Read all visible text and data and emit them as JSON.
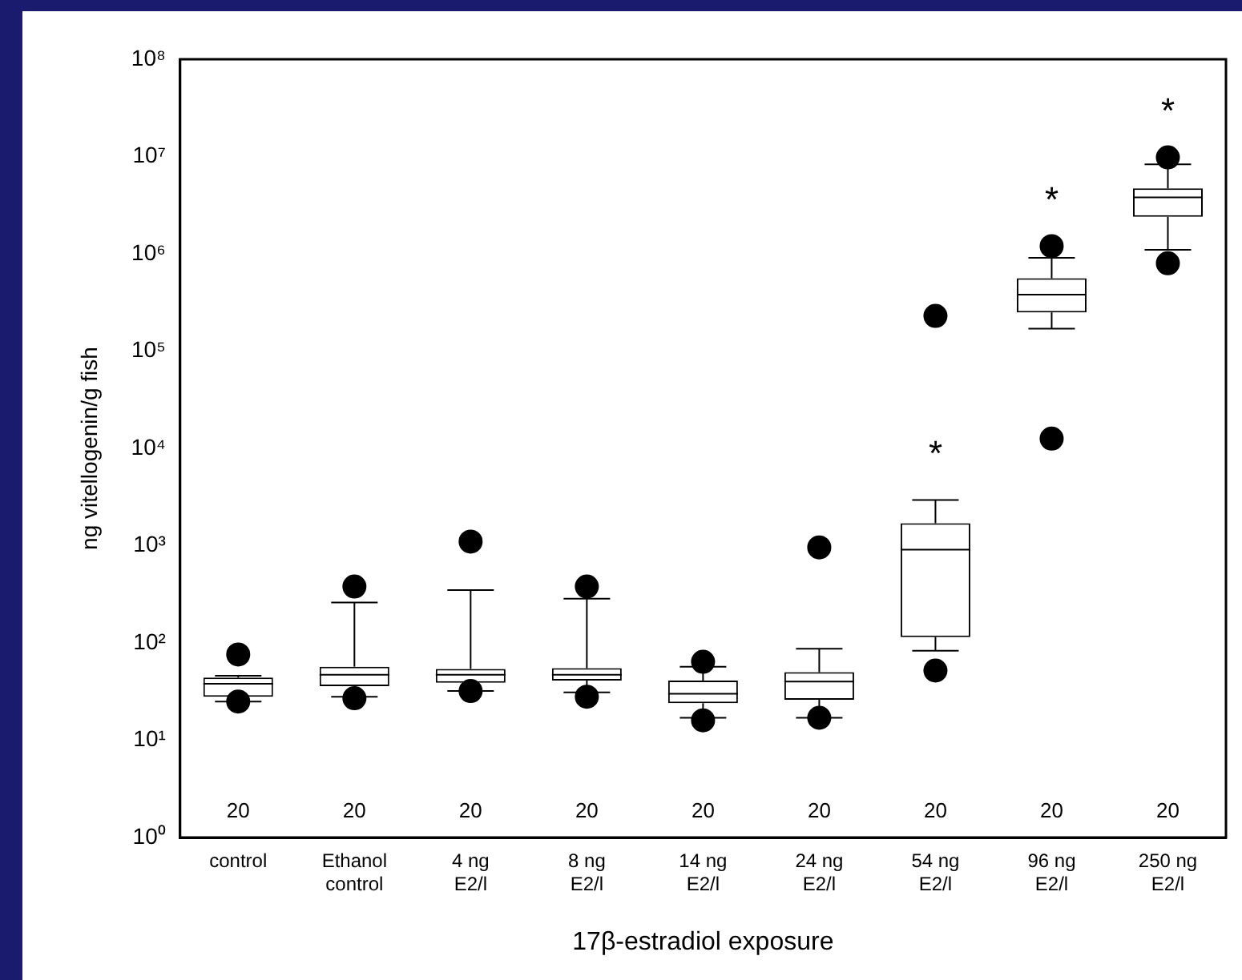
{
  "chart_data": {
    "type": "box",
    "xlabel": "17β-estradiol exposure",
    "ylabel": "ng vitellogenin/g fish",
    "categories": [
      "control",
      "Ethanol\ncontrol",
      "4 ng\nE2/l",
      "8 ng\nE2/l",
      "14 ng\nE2/l",
      "24 ng\nE2/l",
      "54 ng\nE2/l",
      "96 ng\nE2/l",
      "250 ng\nE2/l"
    ],
    "boxes": [
      {
        "low": 25,
        "q1": 28,
        "median": 38,
        "q3": 44,
        "high": 46,
        "outliers": [
          76,
          25
        ]
      },
      {
        "low": 28,
        "q1": 36,
        "median": 47,
        "q3": 57,
        "high": 260,
        "outliers": [
          380,
          27
        ]
      },
      {
        "low": 32,
        "q1": 39,
        "median": 47,
        "q3": 54,
        "high": 350,
        "outliers": [
          1100,
          32
        ]
      },
      {
        "low": 31,
        "q1": 41,
        "median": 47,
        "q3": 55,
        "high": 285,
        "outliers": [
          380,
          28
        ]
      },
      {
        "low": 17,
        "q1": 24,
        "median": 30,
        "q3": 41,
        "high": 57,
        "outliers": [
          64,
          16
        ]
      },
      {
        "low": 17,
        "q1": 26,
        "median": 40,
        "q3": 50,
        "high": 87,
        "outliers": [
          960,
          17
        ]
      },
      {
        "low": 83,
        "q1": 115,
        "median": 910,
        "q3": 1700,
        "high": 2950,
        "outliers": [
          230000,
          52
        ]
      },
      {
        "low": 170000,
        "q1": 250000,
        "median": 380000,
        "q3": 560000,
        "high": 910000,
        "outliers": [
          1200000,
          12600
        ]
      },
      {
        "low": 1100000,
        "q1": 2400000,
        "median": 3800000,
        "q3": 4700000,
        "high": 8300000,
        "outliers": [
          9800000,
          800000
        ]
      }
    ],
    "color": "#000000",
    "log": "y",
    "ylim": [
      1,
      100000000
    ],
    "yticks": [
      {
        "value": 1,
        "label": "10⁰"
      },
      {
        "value": 10,
        "label": "10¹"
      },
      {
        "value": 100,
        "label": "10²"
      },
      {
        "value": 1000,
        "label": "10³"
      },
      {
        "value": 10000,
        "label": "10⁴"
      },
      {
        "value": 100000,
        "label": "10⁵"
      },
      {
        "value": 1000000,
        "label": "10⁶"
      },
      {
        "value": 10000000,
        "label": "10⁷"
      },
      {
        "value": 100000000,
        "label": "10⁸"
      }
    ],
    "grid": false,
    "legend": false,
    "marker": "circle",
    "annotations": [
      "20",
      "20",
      "20",
      "20",
      "20",
      "20",
      "20",
      "20",
      "20",
      "*",
      "*",
      "*"
    ]
  }
}
